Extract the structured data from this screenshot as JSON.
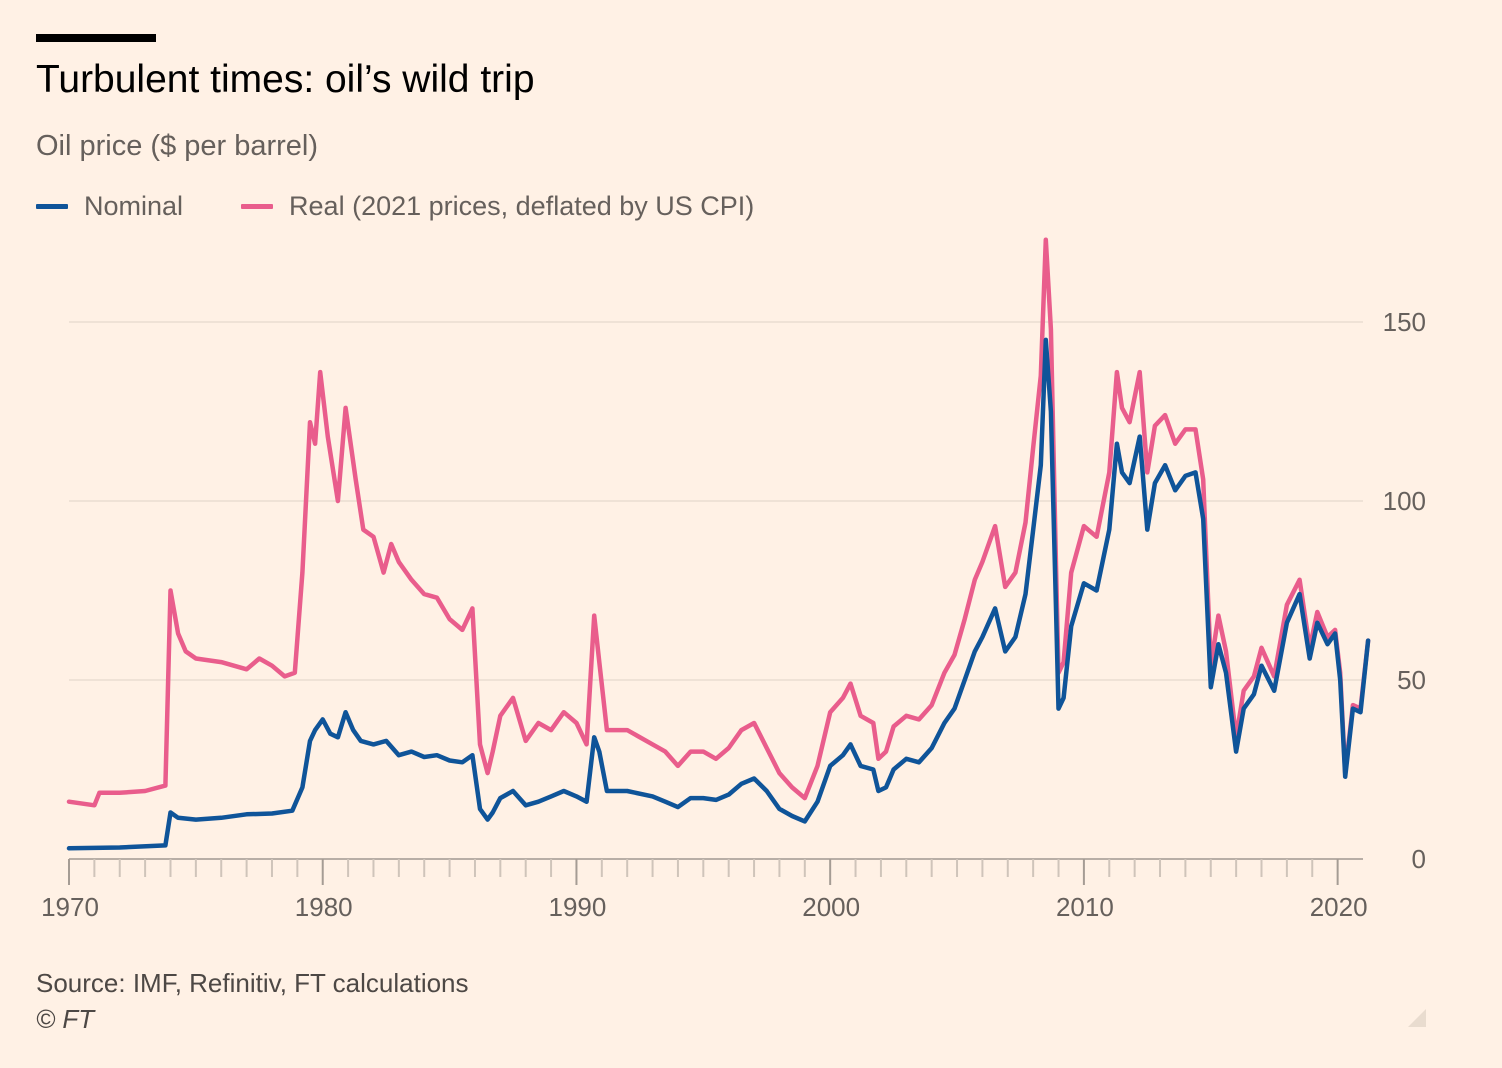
{
  "chart_data": {
    "type": "line",
    "title": "Turbulent times: oil’s wild trip",
    "subtitle": "Oil price ($ per barrel)",
    "source": "Source: IMF, Refinitiv, FT calculations",
    "copyright": "© FT",
    "xlim": [
      1970,
      2021
    ],
    "ylim": [
      0,
      165
    ],
    "xticks": [
      1970,
      1980,
      1990,
      2000,
      2010,
      2020
    ],
    "xtick_labels": [
      "1970",
      "1980",
      "1990",
      "2000",
      "2010",
      "2020"
    ],
    "yticks": [
      0,
      50,
      100,
      150
    ],
    "ytick_labels": [
      "0",
      "50",
      "100",
      "150"
    ],
    "y_axis_side": "right",
    "grid": "horizontal",
    "legend_position": "top-left",
    "series": [
      {
        "name": "Nominal",
        "color": "#0f5499",
        "points": [
          [
            1970.0,
            3
          ],
          [
            1972.0,
            3.2
          ],
          [
            1973.8,
            3.8
          ],
          [
            1974.0,
            13
          ],
          [
            1974.3,
            11.5
          ],
          [
            1975.0,
            11
          ],
          [
            1976.0,
            11.5
          ],
          [
            1977.0,
            12.5
          ],
          [
            1978.0,
            12.7
          ],
          [
            1978.8,
            13.5
          ],
          [
            1979.2,
            20
          ],
          [
            1979.5,
            33
          ],
          [
            1979.7,
            36
          ],
          [
            1980.0,
            39
          ],
          [
            1980.3,
            35
          ],
          [
            1980.6,
            34
          ],
          [
            1980.9,
            41
          ],
          [
            1981.2,
            36
          ],
          [
            1981.5,
            33
          ],
          [
            1982.0,
            32
          ],
          [
            1982.5,
            33
          ],
          [
            1983.0,
            29
          ],
          [
            1983.5,
            30
          ],
          [
            1984.0,
            28.5
          ],
          [
            1984.5,
            29
          ],
          [
            1985.0,
            27.5
          ],
          [
            1985.5,
            27
          ],
          [
            1985.9,
            29
          ],
          [
            1986.2,
            14
          ],
          [
            1986.5,
            11
          ],
          [
            1986.7,
            13
          ],
          [
            1987.0,
            17
          ],
          [
            1987.5,
            19
          ],
          [
            1988.0,
            15
          ],
          [
            1988.5,
            16
          ],
          [
            1989.0,
            17.5
          ],
          [
            1989.5,
            19
          ],
          [
            1990.0,
            17.5
          ],
          [
            1990.4,
            16
          ],
          [
            1990.7,
            34
          ],
          [
            1990.9,
            30
          ],
          [
            1991.2,
            19
          ],
          [
            1992.0,
            19
          ],
          [
            1993.0,
            17.5
          ],
          [
            1993.5,
            16
          ],
          [
            1994.0,
            14.5
          ],
          [
            1994.5,
            17
          ],
          [
            1995.0,
            17
          ],
          [
            1995.5,
            16.5
          ],
          [
            1996.0,
            18
          ],
          [
            1996.5,
            21
          ],
          [
            1997.0,
            22.5
          ],
          [
            1997.5,
            19
          ],
          [
            1998.0,
            14
          ],
          [
            1998.5,
            12
          ],
          [
            1999.0,
            10.5
          ],
          [
            1999.5,
            16
          ],
          [
            2000.0,
            26
          ],
          [
            2000.5,
            29
          ],
          [
            2000.8,
            32
          ],
          [
            2001.2,
            26
          ],
          [
            2001.7,
            25
          ],
          [
            2001.9,
            19
          ],
          [
            2002.2,
            20
          ],
          [
            2002.5,
            25
          ],
          [
            2003.0,
            28
          ],
          [
            2003.5,
            27
          ],
          [
            2004.0,
            31
          ],
          [
            2004.5,
            38
          ],
          [
            2004.9,
            42
          ],
          [
            2005.3,
            50
          ],
          [
            2005.7,
            58
          ],
          [
            2006.0,
            62
          ],
          [
            2006.5,
            70
          ],
          [
            2006.9,
            58
          ],
          [
            2007.3,
            62
          ],
          [
            2007.7,
            74
          ],
          [
            2008.0,
            92
          ],
          [
            2008.3,
            110
          ],
          [
            2008.5,
            145
          ],
          [
            2008.7,
            125
          ],
          [
            2008.9,
            70
          ],
          [
            2009.0,
            42
          ],
          [
            2009.2,
            45
          ],
          [
            2009.5,
            65
          ],
          [
            2010.0,
            77
          ],
          [
            2010.5,
            75
          ],
          [
            2011.0,
            92
          ],
          [
            2011.3,
            116
          ],
          [
            2011.5,
            108
          ],
          [
            2011.8,
            105
          ],
          [
            2012.2,
            118
          ],
          [
            2012.5,
            92
          ],
          [
            2012.8,
            105
          ],
          [
            2013.2,
            110
          ],
          [
            2013.6,
            103
          ],
          [
            2014.0,
            107
          ],
          [
            2014.4,
            108
          ],
          [
            2014.7,
            95
          ],
          [
            2015.0,
            48
          ],
          [
            2015.3,
            60
          ],
          [
            2015.6,
            52
          ],
          [
            2016.0,
            30
          ],
          [
            2016.3,
            42
          ],
          [
            2016.7,
            46
          ],
          [
            2017.0,
            54
          ],
          [
            2017.5,
            47
          ],
          [
            2018.0,
            66
          ],
          [
            2018.5,
            74
          ],
          [
            2018.9,
            56
          ],
          [
            2019.2,
            66
          ],
          [
            2019.6,
            60
          ],
          [
            2019.9,
            63
          ],
          [
            2020.1,
            50
          ],
          [
            2020.3,
            23
          ],
          [
            2020.6,
            42
          ],
          [
            2020.9,
            41
          ],
          [
            2021.2,
            61
          ]
        ]
      },
      {
        "name": "Real (2021 prices, deflated by US CPI)",
        "color": "#e95d8c",
        "points": [
          [
            1970.0,
            16
          ],
          [
            1971.0,
            15
          ],
          [
            1971.2,
            18.5
          ],
          [
            1972.0,
            18.5
          ],
          [
            1973.0,
            19
          ],
          [
            1973.8,
            20.5
          ],
          [
            1974.0,
            75
          ],
          [
            1974.3,
            63
          ],
          [
            1974.6,
            58
          ],
          [
            1975.0,
            56
          ],
          [
            1976.0,
            55
          ],
          [
            1977.0,
            53
          ],
          [
            1977.5,
            56
          ],
          [
            1978.0,
            54
          ],
          [
            1978.5,
            51
          ],
          [
            1978.9,
            52
          ],
          [
            1979.2,
            80
          ],
          [
            1979.5,
            122
          ],
          [
            1979.7,
            116
          ],
          [
            1979.9,
            136
          ],
          [
            1980.2,
            118
          ],
          [
            1980.6,
            100
          ],
          [
            1980.9,
            126
          ],
          [
            1981.3,
            106
          ],
          [
            1981.6,
            92
          ],
          [
            1982.0,
            90
          ],
          [
            1982.4,
            80
          ],
          [
            1982.7,
            88
          ],
          [
            1983.0,
            83
          ],
          [
            1983.5,
            78
          ],
          [
            1984.0,
            74
          ],
          [
            1984.5,
            73
          ],
          [
            1985.0,
            67
          ],
          [
            1985.5,
            64
          ],
          [
            1985.9,
            70
          ],
          [
            1986.2,
            32
          ],
          [
            1986.5,
            24
          ],
          [
            1986.7,
            30
          ],
          [
            1987.0,
            40
          ],
          [
            1987.5,
            45
          ],
          [
            1988.0,
            33
          ],
          [
            1988.5,
            38
          ],
          [
            1989.0,
            36
          ],
          [
            1989.5,
            41
          ],
          [
            1990.0,
            38
          ],
          [
            1990.4,
            32
          ],
          [
            1990.7,
            68
          ],
          [
            1990.9,
            55
          ],
          [
            1991.2,
            36
          ],
          [
            1992.0,
            36
          ],
          [
            1993.0,
            32
          ],
          [
            1993.5,
            30
          ],
          [
            1994.0,
            26
          ],
          [
            1994.5,
            30
          ],
          [
            1995.0,
            30
          ],
          [
            1995.5,
            28
          ],
          [
            1996.0,
            31
          ],
          [
            1996.5,
            36
          ],
          [
            1997.0,
            38
          ],
          [
            1997.5,
            31
          ],
          [
            1998.0,
            24
          ],
          [
            1998.5,
            20
          ],
          [
            1999.0,
            17
          ],
          [
            1999.5,
            26
          ],
          [
            2000.0,
            41
          ],
          [
            2000.5,
            45
          ],
          [
            2000.8,
            49
          ],
          [
            2001.2,
            40
          ],
          [
            2001.7,
            38
          ],
          [
            2001.9,
            28
          ],
          [
            2002.2,
            30
          ],
          [
            2002.5,
            37
          ],
          [
            2003.0,
            40
          ],
          [
            2003.5,
            39
          ],
          [
            2004.0,
            43
          ],
          [
            2004.5,
            52
          ],
          [
            2004.9,
            57
          ],
          [
            2005.3,
            67
          ],
          [
            2005.7,
            78
          ],
          [
            2006.0,
            83
          ],
          [
            2006.5,
            93
          ],
          [
            2006.9,
            76
          ],
          [
            2007.3,
            80
          ],
          [
            2007.7,
            94
          ],
          [
            2008.0,
            115
          ],
          [
            2008.3,
            135
          ],
          [
            2008.5,
            173
          ],
          [
            2008.7,
            148
          ],
          [
            2008.9,
            82
          ],
          [
            2009.0,
            52
          ],
          [
            2009.2,
            55
          ],
          [
            2009.5,
            80
          ],
          [
            2010.0,
            93
          ],
          [
            2010.5,
            90
          ],
          [
            2011.0,
            108
          ],
          [
            2011.3,
            136
          ],
          [
            2011.5,
            126
          ],
          [
            2011.8,
            122
          ],
          [
            2012.2,
            136
          ],
          [
            2012.5,
            108
          ],
          [
            2012.8,
            121
          ],
          [
            2013.2,
            124
          ],
          [
            2013.6,
            116
          ],
          [
            2014.0,
            120
          ],
          [
            2014.4,
            120
          ],
          [
            2014.7,
            106
          ],
          [
            2015.0,
            54
          ],
          [
            2015.3,
            68
          ],
          [
            2015.6,
            58
          ],
          [
            2016.0,
            34
          ],
          [
            2016.3,
            47
          ],
          [
            2016.7,
            51
          ],
          [
            2017.0,
            59
          ],
          [
            2017.5,
            51
          ],
          [
            2018.0,
            71
          ],
          [
            2018.5,
            78
          ],
          [
            2018.9,
            59
          ],
          [
            2019.2,
            69
          ],
          [
            2019.6,
            62
          ],
          [
            2019.9,
            64
          ],
          [
            2020.1,
            52
          ],
          [
            2020.3,
            24
          ],
          [
            2020.6,
            43
          ],
          [
            2020.9,
            42
          ],
          [
            2021.2,
            61
          ]
        ]
      }
    ]
  }
}
